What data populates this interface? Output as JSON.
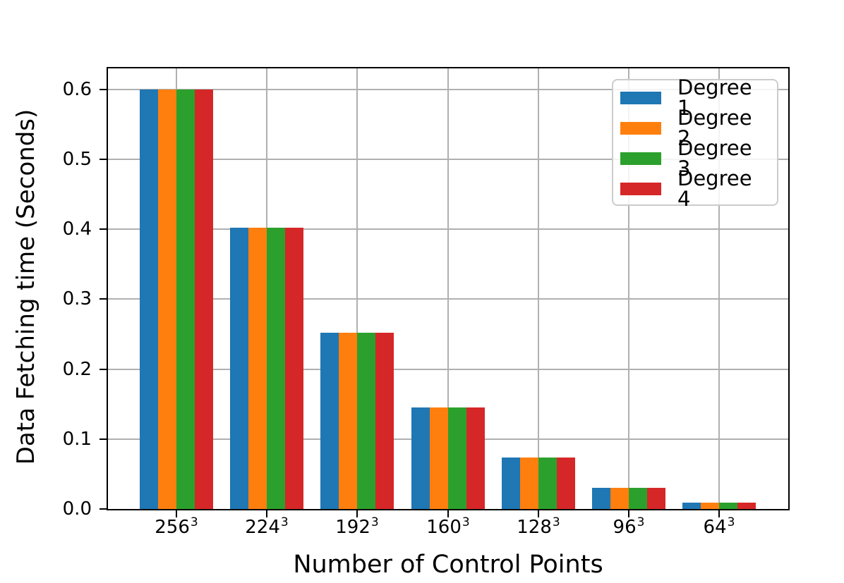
{
  "figure": {
    "background": "#ffffff"
  },
  "chart_data": {
    "type": "bar",
    "title": "",
    "xlabel": "Number of Control Points",
    "ylabel": "Data Fetching time (Seconds)",
    "categories": [
      "256",
      "224",
      "192",
      "160",
      "128",
      "96",
      "64"
    ],
    "category_exponent": "3",
    "series": [
      {
        "name": "Degree 1",
        "color": "#1f77b4",
        "values": [
          0.6,
          0.402,
          0.252,
          0.145,
          0.074,
          0.03,
          0.009
        ]
      },
      {
        "name": "Degree 2",
        "color": "#ff7f0e",
        "values": [
          0.6,
          0.402,
          0.252,
          0.145,
          0.074,
          0.03,
          0.009
        ]
      },
      {
        "name": "Degree 3",
        "color": "#2ca02c",
        "values": [
          0.6,
          0.402,
          0.252,
          0.145,
          0.074,
          0.03,
          0.009
        ]
      },
      {
        "name": "Degree 4",
        "color": "#d62728",
        "values": [
          0.6,
          0.402,
          0.252,
          0.145,
          0.074,
          0.03,
          0.009
        ]
      }
    ],
    "ytick_labels": [
      "0.0",
      "0.1",
      "0.2",
      "0.3",
      "0.4",
      "0.5",
      "0.6"
    ],
    "ylim": [
      0,
      0.63
    ],
    "grid": true,
    "legend_position": "upper right",
    "colors": {
      "spine": "#000000",
      "grid": "#b0b0b0",
      "text": "#000000",
      "legend_border": "#cccccc"
    }
  }
}
